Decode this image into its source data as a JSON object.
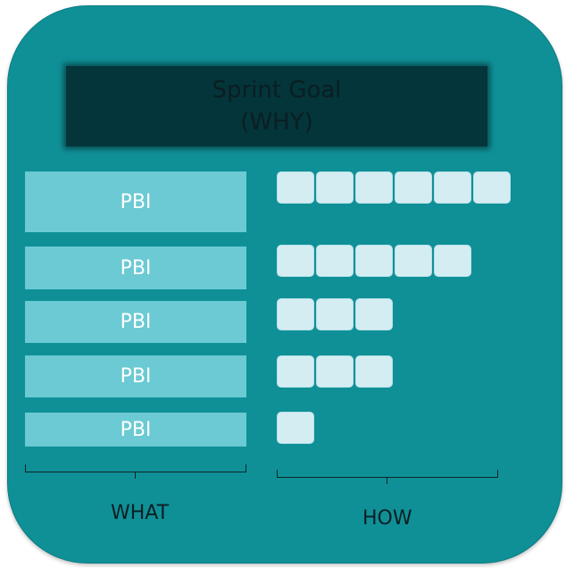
{
  "goal": {
    "line1": "Sprint Goal",
    "line2": "(WHY)"
  },
  "pbis": [
    {
      "label": "PBI",
      "task_count": 6
    },
    {
      "label": "PBI",
      "task_count": 5
    },
    {
      "label": "PBI",
      "task_count": 3
    },
    {
      "label": "PBI",
      "task_count": 3
    },
    {
      "label": "PBI",
      "task_count": 1
    }
  ],
  "what_label": "WHAT",
  "how_label": "HOW"
}
